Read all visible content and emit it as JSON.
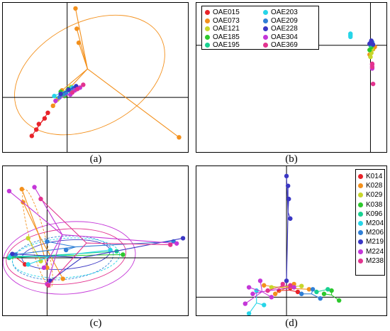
{
  "captions": {
    "a": "(a)",
    "b": "(b)",
    "c": "(c)",
    "d": "(d)"
  },
  "colors": {
    "axis": "#000000"
  },
  "chart_data": [
    {
      "panel": "a",
      "type": "scatter",
      "title": "",
      "xlim": [
        -1,
        1.9
      ],
      "ylim": [
        -0.8,
        1.35
      ],
      "series": [
        {
          "color": "#e8232a",
          "points": [
            [
              -0.55,
              -0.55
            ],
            [
              -0.48,
              -0.46
            ],
            [
              -0.44,
              -0.38
            ],
            [
              -0.35,
              -0.3
            ],
            [
              -0.3,
              -0.22
            ]
          ]
        },
        {
          "color": "#f3901c",
          "points": [
            [
              0.13,
              1.27
            ],
            [
              0.18,
              0.78
            ],
            [
              0.15,
              0.98
            ],
            [
              1.74,
              -0.57
            ],
            [
              -0.22,
              -0.12
            ],
            [
              -0.08,
              0.1
            ]
          ]
        },
        {
          "color": "#c7d62a",
          "points": [
            [
              0.0,
              0.1
            ],
            [
              -0.05,
              0.05
            ],
            [
              0.06,
              0.15
            ],
            [
              -0.15,
              -0.03
            ]
          ]
        },
        {
          "color": "#2dc82d",
          "points": [
            [
              -0.1,
              0.08
            ],
            [
              0.02,
              0.12
            ],
            [
              -0.04,
              0.02
            ]
          ]
        },
        {
          "color": "#18d191",
          "points": [
            [
              -0.06,
              0.04
            ],
            [
              0.05,
              0.09
            ]
          ]
        },
        {
          "color": "#26d5e8",
          "points": [
            [
              -0.2,
              0.02
            ],
            [
              0.08,
              0.14
            ]
          ]
        },
        {
          "color": "#2f7fd6",
          "points": [
            [
              -0.02,
              0.06
            ],
            [
              0.1,
              0.13
            ],
            [
              -0.12,
              0.0
            ]
          ]
        },
        {
          "color": "#3a36c4",
          "points": [
            [
              0.02,
              0.11
            ],
            [
              -0.1,
              0.05
            ],
            [
              0.14,
              0.16
            ]
          ]
        },
        {
          "color": "#c436d8",
          "points": [
            [
              0.12,
              0.1
            ],
            [
              0.2,
              0.14
            ],
            [
              -0.18,
              -0.05
            ],
            [
              0.05,
              0.04
            ]
          ]
        },
        {
          "color": "#e3338f",
          "points": [
            [
              0.25,
              0.18
            ],
            [
              0.16,
              0.12
            ],
            [
              0.08,
              0.07
            ]
          ]
        }
      ],
      "ellipses": [
        {
          "color": "#f3901c",
          "cx": 0.35,
          "cy": 0.32,
          "rx": 1.25,
          "ry": 0.75,
          "angle": -28,
          "dashed": false
        }
      ]
    },
    {
      "panel": "b",
      "type": "scatter",
      "title": "",
      "xlim": [
        -2.0,
        0.2
      ],
      "ylim": [
        -1.4,
        0.55
      ],
      "legend": [
        "OAE015",
        "OAE073",
        "OAE121",
        "OAE185",
        "OAE195",
        "OAE203",
        "OAE209",
        "OAE228",
        "OAE304",
        "OAE369"
      ],
      "legend_position": "top-left",
      "series": [
        {
          "name": "OAE015",
          "color": "#e8232a",
          "points": [
            [
              -1.78,
              -0.02
            ],
            [
              -1.7,
              -0.02
            ],
            [
              -1.62,
              -0.01
            ],
            [
              -1.55,
              0.0
            ]
          ]
        },
        {
          "name": "OAE073",
          "color": "#f3901c",
          "points": [
            [
              0.02,
              -0.02
            ],
            [
              0.05,
              -0.02
            ],
            [
              -0.01,
              -0.12
            ],
            [
              0.03,
              -0.05
            ]
          ]
        },
        {
          "name": "OAE121",
          "color": "#c7d62a",
          "points": [
            [
              0.0,
              -0.15
            ],
            [
              0.01,
              -0.1
            ],
            [
              0.02,
              -0.05
            ]
          ]
        },
        {
          "name": "OAE185",
          "color": "#2dc82d",
          "points": [
            [
              0.01,
              -0.02
            ],
            [
              -0.01,
              -0.06
            ]
          ]
        },
        {
          "name": "OAE195",
          "color": "#18d191",
          "points": [
            [
              0.0,
              0.0
            ],
            [
              0.02,
              0.02
            ]
          ]
        },
        {
          "name": "OAE203",
          "color": "#26d5e8",
          "points": [
            [
              -0.23,
              0.15
            ],
            [
              -0.23,
              0.13
            ],
            [
              -0.23,
              0.11
            ]
          ]
        },
        {
          "name": "OAE209",
          "color": "#2f7fd6",
          "points": [
            [
              0.0,
              0.03
            ],
            [
              0.02,
              0.04
            ]
          ]
        },
        {
          "name": "OAE228",
          "color": "#3a36c4",
          "points": [
            [
              0.01,
              0.06
            ],
            [
              -0.01,
              0.02
            ],
            [
              0.03,
              0.01
            ]
          ]
        },
        {
          "name": "OAE304",
          "color": "#c436d8",
          "points": [
            [
              0.02,
              -0.25
            ],
            [
              0.02,
              -0.3
            ]
          ]
        },
        {
          "name": "OAE369",
          "color": "#e3338f",
          "points": [
            [
              0.02,
              -0.24
            ],
            [
              0.02,
              -0.28
            ],
            [
              0.03,
              -0.5
            ]
          ]
        }
      ]
    },
    {
      "panel": "c",
      "type": "scatter",
      "title": "",
      "xlim": [
        -0.7,
        2.25
      ],
      "ylim": [
        -0.9,
        1.4
      ],
      "series": [
        {
          "color": "#e8232a",
          "points": [
            [
              -0.55,
              0.05
            ],
            [
              -0.35,
              -0.1
            ]
          ]
        },
        {
          "color": "#f3901c",
          "points": [
            [
              -0.4,
              1.05
            ],
            [
              0.25,
              -0.32
            ],
            [
              0.0,
              -0.15
            ],
            [
              -0.38,
              0.85
            ]
          ]
        },
        {
          "color": "#c7d62a",
          "points": [
            [
              -0.3,
              0.3
            ],
            [
              -0.1,
              -0.05
            ]
          ]
        },
        {
          "color": "#2dc82d",
          "points": [
            [
              1.2,
              0.05
            ],
            [
              -0.55,
              0.02
            ]
          ]
        },
        {
          "color": "#18d191",
          "points": [
            [
              1.1,
              0.1
            ],
            [
              -0.6,
              0.0
            ]
          ]
        },
        {
          "color": "#26d5e8",
          "points": [
            [
              1.0,
              0.12
            ],
            [
              -0.58,
              0.03
            ],
            [
              -0.3,
              -0.1
            ]
          ]
        },
        {
          "color": "#2f7fd6",
          "points": [
            [
              2.0,
              0.25
            ],
            [
              0.0,
              0.25
            ],
            [
              0.3,
              0.12
            ],
            [
              -0.5,
              0.05
            ]
          ]
        },
        {
          "color": "#3a36c4",
          "points": [
            [
              2.15,
              0.3
            ],
            [
              -0.55,
              0.06
            ],
            [
              0.05,
              -0.35
            ]
          ]
        },
        {
          "color": "#c436d8",
          "points": [
            [
              -0.2,
              1.08
            ],
            [
              -0.6,
              1.02
            ],
            [
              0.0,
              -0.4
            ],
            [
              2.05,
              0.22
            ],
            [
              -0.05,
              -0.15
            ]
          ]
        },
        {
          "color": "#e3338f",
          "points": [
            [
              -0.1,
              0.9
            ],
            [
              0.02,
              -0.42
            ],
            [
              1.95,
              0.2
            ]
          ]
        }
      ],
      "ellipses": [
        {
          "color": "#c436d8",
          "cx": 0.35,
          "cy": 0.0,
          "rx": 1.05,
          "ry": 0.55,
          "angle": -5,
          "dashed": false
        },
        {
          "color": "#e3338f",
          "cx": 0.3,
          "cy": 0.02,
          "rx": 0.95,
          "ry": 0.42,
          "angle": -5,
          "dashed": false
        },
        {
          "color": "#2f7fd6",
          "cx": 0.25,
          "cy": 0.0,
          "rx": 0.8,
          "ry": 0.33,
          "angle": -5,
          "dashed": true
        },
        {
          "color": "#26d5e8",
          "cx": 0.3,
          "cy": 0.0,
          "rx": 0.85,
          "ry": 0.3,
          "angle": -4,
          "dashed": true
        },
        {
          "color": "#f3901c",
          "cx": -0.15,
          "cy": 0.3,
          "rx": 0.8,
          "ry": 0.12,
          "angle": 75,
          "dashed": true
        },
        {
          "color": "#3a36c4",
          "cx": 0.3,
          "cy": 0.05,
          "rx": 0.7,
          "ry": 0.22,
          "angle": -5,
          "dashed": false
        }
      ]
    },
    {
      "panel": "d",
      "type": "scatter",
      "title": "",
      "xlim": [
        -1.2,
        1.35
      ],
      "ylim": [
        -0.3,
        2.0
      ],
      "legend": [
        "K014",
        "K028",
        "K029",
        "K038",
        "K096",
        "M204",
        "M206",
        "M219",
        "M224",
        "M238"
      ],
      "legend_position": "top-right",
      "series": [
        {
          "name": "K014",
          "color": "#e8232a",
          "points": [
            [
              -0.1,
              0.1
            ],
            [
              0.05,
              0.14
            ],
            [
              0.15,
              0.08
            ]
          ]
        },
        {
          "name": "K028",
          "color": "#f3901c",
          "points": [
            [
              -0.3,
              0.18
            ],
            [
              0.1,
              0.2
            ],
            [
              0.3,
              0.12
            ],
            [
              -0.15,
              0.05
            ]
          ]
        },
        {
          "name": "K029",
          "color": "#c7d62a",
          "points": [
            [
              -0.2,
              0.15
            ],
            [
              0.2,
              0.17
            ]
          ]
        },
        {
          "name": "K038",
          "color": "#2dc82d",
          "points": [
            [
              0.5,
              0.05
            ],
            [
              0.7,
              -0.05
            ],
            [
              0.6,
              0.1
            ]
          ]
        },
        {
          "name": "K096",
          "color": "#18d191",
          "points": [
            [
              0.4,
              0.08
            ],
            [
              0.55,
              0.12
            ]
          ]
        },
        {
          "name": "M204",
          "color": "#26d5e8",
          "points": [
            [
              -0.5,
              -0.25
            ],
            [
              -0.3,
              -0.12
            ],
            [
              -0.4,
              0.1
            ]
          ]
        },
        {
          "name": "M206",
          "color": "#2f7fd6",
          "points": [
            [
              0.35,
              0.12
            ],
            [
              0.45,
              -0.02
            ],
            [
              0.2,
              0.05
            ]
          ]
        },
        {
          "name": "M219",
          "color": "#3a36c4",
          "points": [
            [
              0.0,
              1.85
            ],
            [
              0.02,
              1.7
            ],
            [
              0.03,
              1.5
            ],
            [
              0.05,
              1.2
            ],
            [
              0.0,
              0.25
            ]
          ]
        },
        {
          "name": "M224",
          "color": "#c436d8",
          "points": [
            [
              -0.5,
              0.15
            ],
            [
              -0.45,
              0.05
            ],
            [
              -0.55,
              -0.1
            ],
            [
              -0.2,
              0.0
            ],
            [
              0.1,
              0.15
            ],
            [
              -0.35,
              0.25
            ]
          ]
        },
        {
          "name": "M238",
          "color": "#e3338f",
          "points": [
            [
              -0.05,
              0.2
            ],
            [
              0.05,
              0.18
            ],
            [
              -0.25,
              0.1
            ]
          ]
        }
      ]
    }
  ]
}
